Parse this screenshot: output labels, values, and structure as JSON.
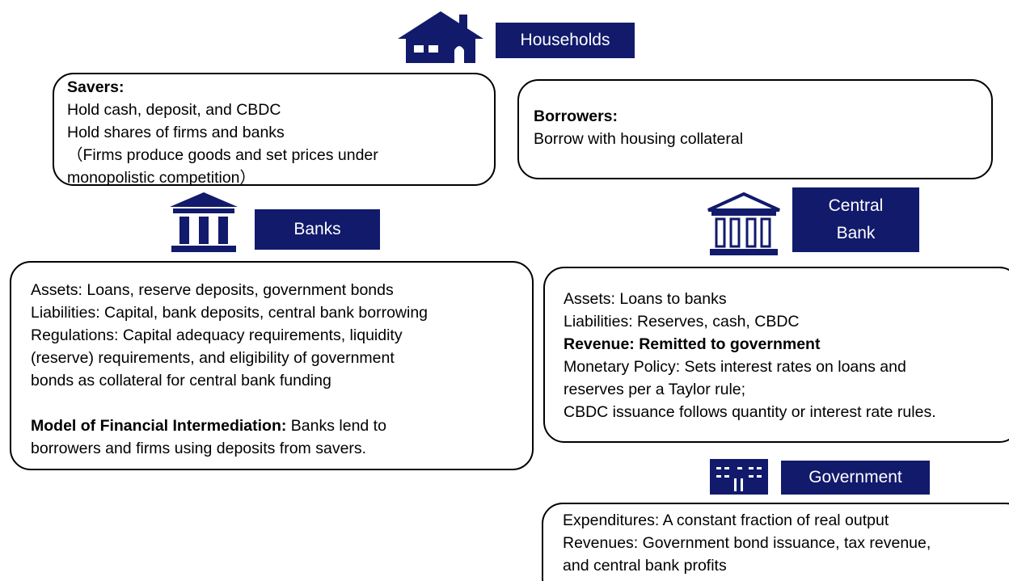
{
  "households": {
    "label": "Households",
    "savers": {
      "lines": [
        {
          "bold": "Savers:"
        },
        {
          "text": "Hold cash, deposit, and CBDC"
        },
        {
          "text": "Hold shares of firms and banks"
        },
        {
          "text": "（Firms produce goods and set prices under"
        },
        {
          "text": "monopolistic competition）"
        }
      ]
    },
    "borrowers": {
      "lines": [
        {
          "bold": "Borrowers:"
        },
        {
          "text": "Borrow with housing collateral"
        }
      ]
    }
  },
  "banks": {
    "label": "Banks",
    "lines": [
      {
        "text": "Assets: Loans, reserve deposits, government bonds"
      },
      {
        "text": "Liabilities: Capital, bank deposits, central bank borrowing"
      },
      {
        "text": "Regulations: Capital adequacy requirements, liquidity"
      },
      {
        "text": "(reserve) requirements, and eligibility of government"
      },
      {
        "text": "bonds as collateral for central bank funding"
      },
      {},
      {
        "bold": "Model of Financial Intermediation:",
        "text": " Banks lend to"
      },
      {
        "text": "borrowers and firms using deposits from savers."
      }
    ]
  },
  "central_bank": {
    "label": "Central Bank",
    "lines": [
      {
        "text": "Assets: Loans to banks"
      },
      {
        "text": "Liabilities: Reserves, cash, CBDC"
      },
      {
        "bold": "Revenue: Remitted to government"
      },
      {
        "text": "Monetary Policy: Sets interest rates on loans and"
      },
      {
        "text": "reserves per a Taylor rule;"
      },
      {
        "text": "CBDC issuance follows quantity or interest rate rules."
      }
    ]
  },
  "government": {
    "label": "Government",
    "lines": [
      {
        "text": "Expenditures: A constant fraction of real output"
      },
      {
        "text": "Revenues: Government bond issuance, tax revenue,"
      },
      {
        "text": "and central bank profits"
      }
    ]
  }
}
